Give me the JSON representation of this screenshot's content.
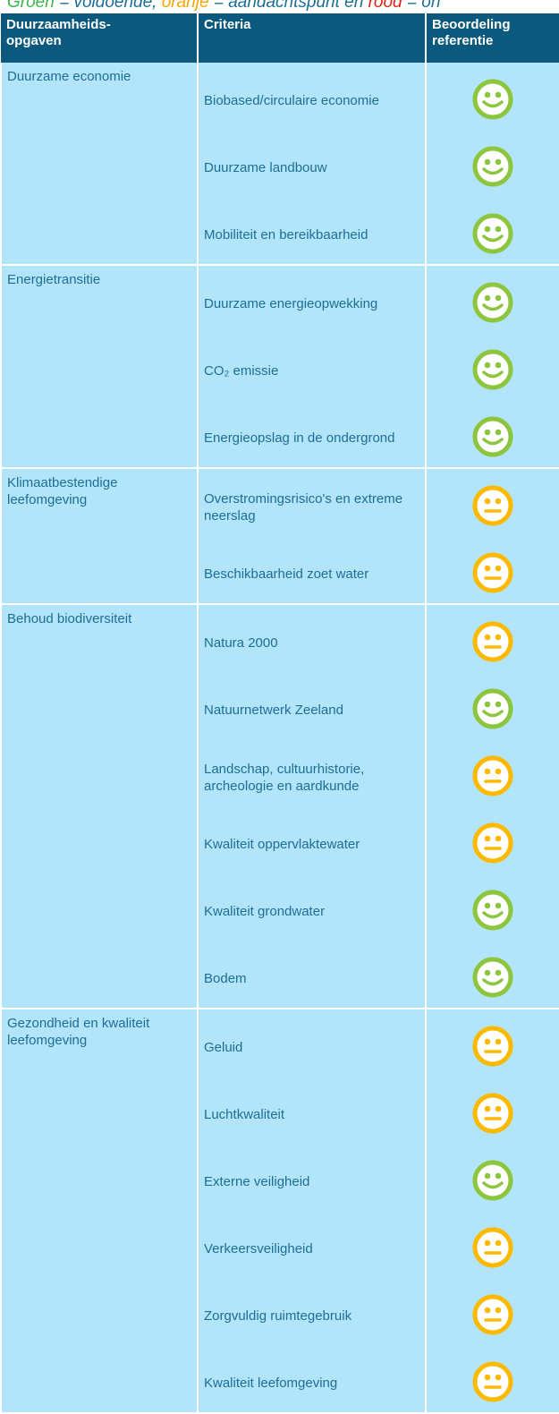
{
  "legend": {
    "parts": [
      {
        "text": "Groen",
        "color": "#3cb54a"
      },
      {
        "text": " = voldoende, ",
        "color": "#1d6e94"
      },
      {
        "text": "oranje",
        "color": "#f7a400"
      },
      {
        "text": " = aandachtspunt en ",
        "color": "#1d6e94"
      },
      {
        "text": "rood",
        "color": "#e2231a"
      },
      {
        "text": " = on",
        "color": "#1d6e94"
      }
    ]
  },
  "table": {
    "headers": [
      "Duurzaamheids-\nopgaven",
      "Criteria",
      "Beoordeling\nreferentie"
    ],
    "groups": [
      {
        "name": "Duurzame economie",
        "criteria": [
          {
            "label": "Biobased/circulaire economie",
            "color": "#8cc63f"
          },
          {
            "label": "Duurzame landbouw",
            "color": "#8cc63f"
          },
          {
            "label": "Mobiliteit en bereikbaarheid",
            "color": "#8cc63f"
          }
        ]
      },
      {
        "name": "Energietransitie",
        "criteria": [
          {
            "label": "Duurzame energieopwekking",
            "color": "#8cc63f"
          },
          {
            "label": "CO₂ emissie",
            "color": "#8cc63f"
          },
          {
            "label": "Energieopslag in de ondergrond",
            "color": "#8cc63f"
          }
        ]
      },
      {
        "name": "Klimaatbestendige leefomgeving",
        "criteria": [
          {
            "label": "Overstromingsrisico's en extreme neerslag",
            "color": "#fbb900"
          },
          {
            "label": "Beschikbaarheid zoet water",
            "color": "#fbb900"
          }
        ]
      },
      {
        "name": "Behoud biodiversiteit",
        "criteria": [
          {
            "label": "Natura 2000",
            "color": "#fbb900"
          },
          {
            "label": "Natuurnetwerk Zeeland",
            "color": "#8cc63f"
          },
          {
            "label": "Landschap, cultuurhistorie, archeologie en aardkunde",
            "color": "#fbb900"
          },
          {
            "label": "Kwaliteit oppervlaktewater",
            "color": "#fbb900"
          },
          {
            "label": "Kwaliteit grondwater",
            "color": "#8cc63f"
          },
          {
            "label": "Bodem",
            "color": "#8cc63f"
          }
        ]
      },
      {
        "name": "Gezondheid en kwaliteit leefomgeving",
        "criteria": [
          {
            "label": "Geluid",
            "color": "#fbb900"
          },
          {
            "label": "Luchtkwaliteit",
            "color": "#fbb900"
          },
          {
            "label": "Externe veiligheid",
            "color": "#8cc63f"
          },
          {
            "label": "Verkeersveiligheid",
            "color": "#fbb900"
          },
          {
            "label": "Zorgvuldig ruimtegebruik",
            "color": "#fbb900"
          },
          {
            "label": "Kwaliteit leefomgeving",
            "color": "#fbb900"
          }
        ]
      }
    ]
  }
}
